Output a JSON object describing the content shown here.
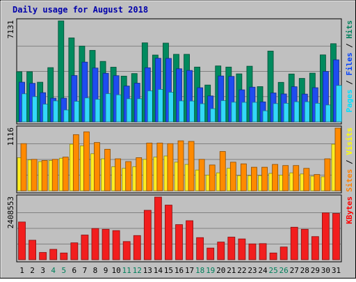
{
  "chart_data": {
    "type": "bar",
    "title": "Daily usage for August 2018",
    "categories": [
      "1",
      "2",
      "3",
      "4",
      "5",
      "6",
      "7",
      "8",
      "9",
      "10",
      "11",
      "12",
      "13",
      "14",
      "15",
      "16",
      "17",
      "18",
      "19",
      "20",
      "21",
      "22",
      "23",
      "24",
      "25",
      "26",
      "27",
      "28",
      "29",
      "30",
      "31"
    ],
    "weekend_days": [
      "4",
      "5",
      "11",
      "12",
      "18",
      "19",
      "25",
      "26"
    ],
    "panels": [
      {
        "id": "hits-panel",
        "max_label": "7131",
        "ymax": 7131,
        "right_labels": [
          {
            "text": "Pages",
            "color": "#00e0ff"
          },
          {
            "text": " / ",
            "color": "#000000"
          },
          {
            "text": "Files",
            "color": "#0040ff"
          },
          {
            "text": " / ",
            "color": "#000000"
          },
          {
            "text": "Hits",
            "color": "#00805c"
          }
        ],
        "series": [
          {
            "name": "Hits",
            "color": "#008a5e",
            "values": [
              3540,
              3540,
              2800,
              3830,
              7131,
              5930,
              5350,
              5050,
              4270,
              3860,
              3230,
              3410,
              5580,
              4720,
              5560,
              4770,
              4770,
              3870,
              2600,
              3950,
              3870,
              3390,
              3930,
              2490,
              5000,
              2790,
              3380,
              3070,
              3440,
              4730,
              5520
            ]
          },
          {
            "name": "Files",
            "color": "#1e4cf0",
            "values": [
              2800,
              2720,
              2060,
              1670,
              1670,
              3270,
              4220,
              3800,
              3430,
              3260,
              2530,
              2730,
              3820,
              4490,
              4480,
              3750,
              3630,
              2410,
              1830,
              3240,
              3210,
              2260,
              2450,
              1410,
              2040,
              1970,
              2480,
              1960,
              2410,
              3560,
              4380
            ]
          },
          {
            "name": "Pages",
            "color": "#33d8f8",
            "values": [
              1980,
              1780,
              1250,
              1480,
              840,
              1450,
              1690,
              1590,
              1990,
              1910,
              1630,
              1630,
              2190,
              2290,
              2090,
              1480,
              1470,
              1280,
              930,
              1500,
              1390,
              1380,
              1380,
              780,
              1290,
              1310,
              1420,
              1420,
              1310,
              1190,
              2570
            ]
          }
        ]
      },
      {
        "id": "visits-panel",
        "max_label": "1116",
        "ymax": 1116,
        "right_labels": [
          {
            "text": "Sites",
            "color": "#ff8000"
          },
          {
            "text": " / ",
            "color": "#000000"
          },
          {
            "text": "Visits",
            "color": "#ffff00"
          }
        ],
        "series": [
          {
            "name": "Visits",
            "color": "#ffee22",
            "values": [
              590,
              550,
              520,
              540,
              580,
              830,
              800,
              660,
              570,
              430,
              400,
              430,
              560,
              600,
              620,
              510,
              470,
              370,
              280,
              320,
              400,
              270,
              270,
              270,
              310,
              280,
              320,
              300,
              260,
              250,
              830
            ]
          },
          {
            "name": "Sites",
            "color": "#ff8a00",
            "values": [
              840,
              560,
              540,
              560,
              600,
              1000,
              1050,
              860,
              740,
              570,
              520,
              590,
              850,
              850,
              840,
              890,
              880,
              560,
              460,
              700,
              510,
              480,
              420,
              420,
              470,
              450,
              450,
              400,
              290,
              570,
              1116
            ]
          }
        ]
      },
      {
        "id": "kbytes-panel",
        "max_label": "2408553",
        "ymax": 2408553,
        "right_labels": [
          {
            "text": "KBytes",
            "color": "#ff0000"
          }
        ],
        "series": [
          {
            "name": "KBytes",
            "color": "#f21e1e",
            "values": [
              1450000,
              750000,
              280000,
              400000,
              260000,
              650000,
              950000,
              1200000,
              1170000,
              1120000,
              700000,
              930000,
              1900000,
              2408553,
              2100000,
              1350000,
              1500000,
              850000,
              450000,
              680000,
              870000,
              800000,
              610000,
              620000,
              260000,
              490000,
              1250000,
              1170000,
              890000,
              1800000,
              1780000
            ]
          }
        ]
      }
    ]
  }
}
